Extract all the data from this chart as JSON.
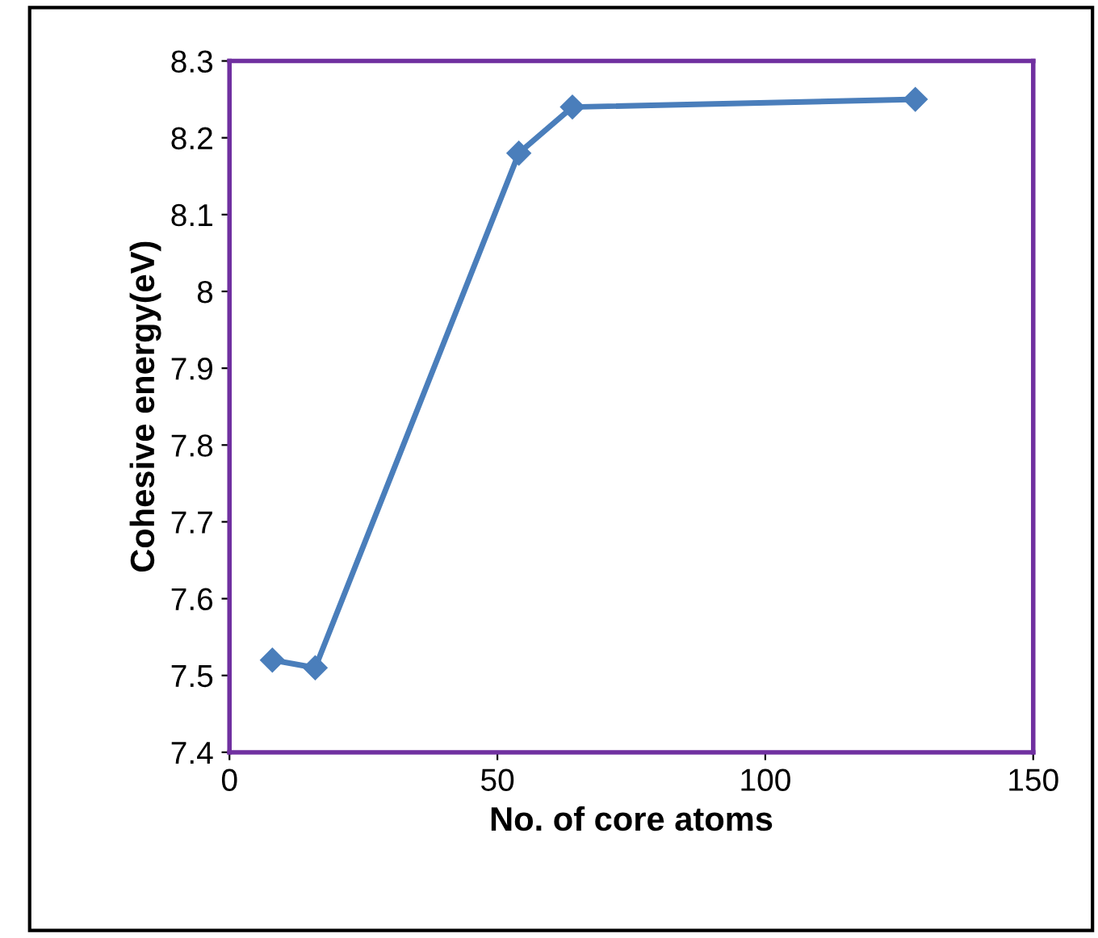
{
  "chart_data": {
    "type": "line",
    "xlabel": "No. of core atoms",
    "ylabel": "Cohesive energy(eV)",
    "x": [
      8,
      16,
      54,
      64,
      128
    ],
    "series": [
      {
        "color": "#4a7ebb",
        "values": [
          7.52,
          7.51,
          8.18,
          8.24,
          8.25
        ]
      }
    ],
    "xlim": [
      0,
      150
    ],
    "xticks": [
      0,
      50,
      100,
      150
    ],
    "ylim": [
      7.4,
      8.3
    ],
    "yticks": [
      {
        "value": 7.4,
        "label": "7.4"
      },
      {
        "value": 7.5,
        "label": "7.5"
      },
      {
        "value": 7.6,
        "label": "7.6"
      },
      {
        "value": 7.7,
        "label": "7.7"
      },
      {
        "value": 7.8,
        "label": "7.8"
      },
      {
        "value": 7.9,
        "label": "7.9"
      },
      {
        "value": 8,
        "label": "8"
      },
      {
        "value": 8.1,
        "label": "8.1"
      },
      {
        "value": 8.2,
        "label": "8.2"
      },
      {
        "value": 8.3,
        "label": "8.3"
      }
    ],
    "marker": "diamond",
    "grid": false,
    "legend": false
  }
}
